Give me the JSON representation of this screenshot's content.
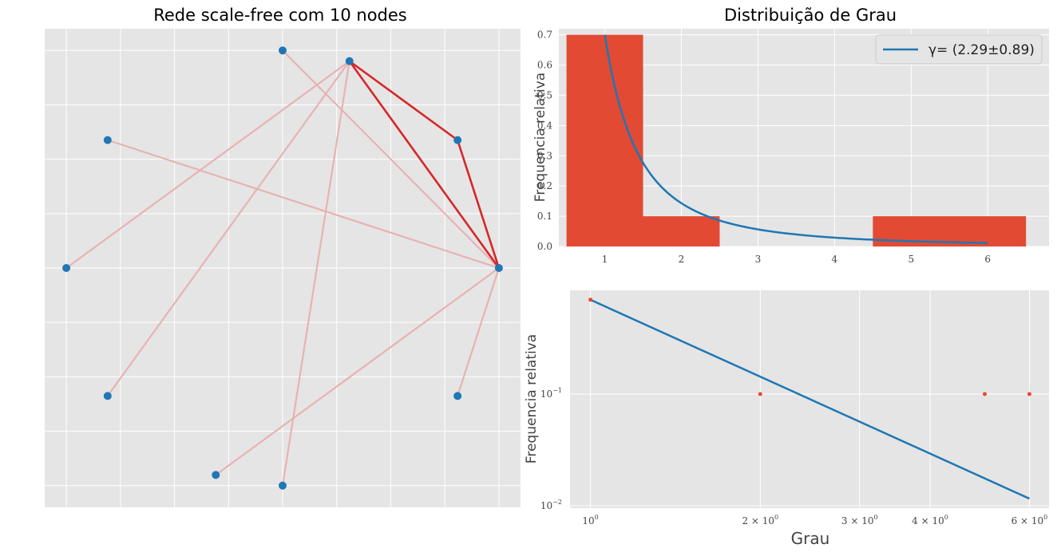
{
  "chart_data": [
    {
      "type": "network",
      "title": "Rede scale-free com 10 nodes",
      "nodes": [
        {
          "id": 0,
          "x": 0.0,
          "y": 1.0
        },
        {
          "id": 1,
          "x": 0.309,
          "y": 0.951
        },
        {
          "id": 2,
          "x": 0.809,
          "y": 0.588
        },
        {
          "id": 3,
          "x": 1.0,
          "y": 0.0
        },
        {
          "id": 4,
          "x": 0.809,
          "y": -0.588
        },
        {
          "id": 5,
          "x": 0.0,
          "y": -1.0
        },
        {
          "id": 6,
          "x": -0.309,
          "y": -0.951
        },
        {
          "id": 7,
          "x": -0.809,
          "y": -0.588
        },
        {
          "id": 8,
          "x": -1.0,
          "y": 0.0
        },
        {
          "id": 9,
          "x": -0.809,
          "y": 0.588
        }
      ],
      "hub_edges": [
        [
          1,
          2
        ],
        [
          1,
          3
        ],
        [
          2,
          3
        ]
      ],
      "faded_edges": [
        [
          0,
          3
        ],
        [
          1,
          8
        ],
        [
          1,
          7
        ],
        [
          1,
          5
        ],
        [
          9,
          3
        ],
        [
          6,
          3
        ],
        [
          4,
          3
        ]
      ],
      "xlim": [
        -1.1,
        1.1
      ],
      "ylim": [
        -1.1,
        1.1
      ],
      "grid": true,
      "colors": {
        "node": "#1f77b4",
        "hub_edge": "#d62728",
        "faded_edge": "#e8b2b2"
      }
    },
    {
      "type": "bar",
      "title": "Distribuição de Grau",
      "ylabel": "Frequencia relativa",
      "bars": [
        {
          "x": 1,
          "width": 1,
          "value": 0.7
        },
        {
          "x": 2,
          "width": 1,
          "value": 0.1
        },
        {
          "x": 5.5,
          "width": 2,
          "value": 0.1
        }
      ],
      "fit": {
        "name": "γ= (2.29±0.89)",
        "gamma": 2.29,
        "coef": 0.7,
        "xrange": [
          1,
          6
        ]
      },
      "xticks": [
        1,
        2,
        3,
        4,
        5,
        6
      ],
      "yticks": [
        "0.0",
        "0.1",
        "0.2",
        "0.3",
        "0.4",
        "0.5",
        "0.6",
        "0.7"
      ],
      "xlim": [
        0.4,
        6.8
      ],
      "ylim": [
        0,
        0.72
      ],
      "legend": "top-right",
      "grid": true,
      "colors": {
        "bar": "#e24a33",
        "fit": "#1f77b4"
      }
    },
    {
      "type": "scatter",
      "scale": "log-log",
      "xlabel": "Grau",
      "ylabel": "Frequencia relativa",
      "points": [
        {
          "x": 1,
          "y": 0.7
        },
        {
          "x": 2,
          "y": 0.1
        },
        {
          "x": 5,
          "y": 0.1
        },
        {
          "x": 6,
          "y": 0.1
        }
      ],
      "fit": {
        "gamma": 2.29,
        "coef": 0.7,
        "xrange": [
          1,
          6
        ]
      },
      "xticks": [
        {
          "value": 1,
          "base": "10",
          "exp": "0"
        },
        {
          "value": 2,
          "base": "2 × 10",
          "exp": "0"
        },
        {
          "value": 3,
          "base": "3 × 10",
          "exp": "0"
        },
        {
          "value": 4,
          "base": "4 × 10",
          "exp": "0"
        },
        {
          "value": 6,
          "base": "6 × 10",
          "exp": "0"
        }
      ],
      "yticks": [
        {
          "value": 0.1,
          "base": "10",
          "exp": "−1"
        },
        {
          "value": 0.01,
          "base": "10",
          "exp": "−2"
        }
      ],
      "xlim": [
        0.92,
        6.5
      ],
      "ylim": [
        0.0095,
        0.85
      ],
      "grid": true,
      "colors": {
        "point": "#e24a33",
        "fit": "#1f77b4"
      }
    }
  ]
}
